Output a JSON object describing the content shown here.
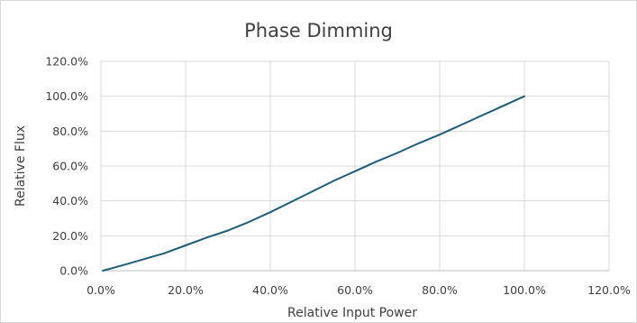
{
  "chart_data": {
    "type": "line",
    "title": "Phase Dimming",
    "xlabel": "Relative Input Power",
    "ylabel": "Relative Flux",
    "xlim": [
      0,
      120
    ],
    "ylim": [
      0,
      120
    ],
    "x_ticks": [
      "0.0%",
      "20.0%",
      "40.0%",
      "60.0%",
      "80.0%",
      "100.0%",
      "120.0%"
    ],
    "y_ticks": [
      "0.0%",
      "20.0%",
      "40.0%",
      "60.0%",
      "80.0%",
      "100.0%",
      "120.0%"
    ],
    "grid": true,
    "legend": "none",
    "series": [
      {
        "color": "#1f5c7a",
        "points": [
          [
            0.5,
            0
          ],
          [
            5,
            3
          ],
          [
            10,
            6.5
          ],
          [
            15,
            10
          ],
          [
            20,
            14.5
          ],
          [
            25,
            19
          ],
          [
            30,
            23
          ],
          [
            35,
            28
          ],
          [
            40,
            33.5
          ],
          [
            45,
            39.5
          ],
          [
            50,
            45.5
          ],
          [
            55,
            51.5
          ],
          [
            60,
            57
          ],
          [
            65,
            62.5
          ],
          [
            70,
            67.5
          ],
          [
            75,
            73
          ],
          [
            80,
            78
          ],
          [
            85,
            83.5
          ],
          [
            90,
            89
          ],
          [
            95,
            94.5
          ],
          [
            100,
            100
          ]
        ]
      }
    ]
  }
}
